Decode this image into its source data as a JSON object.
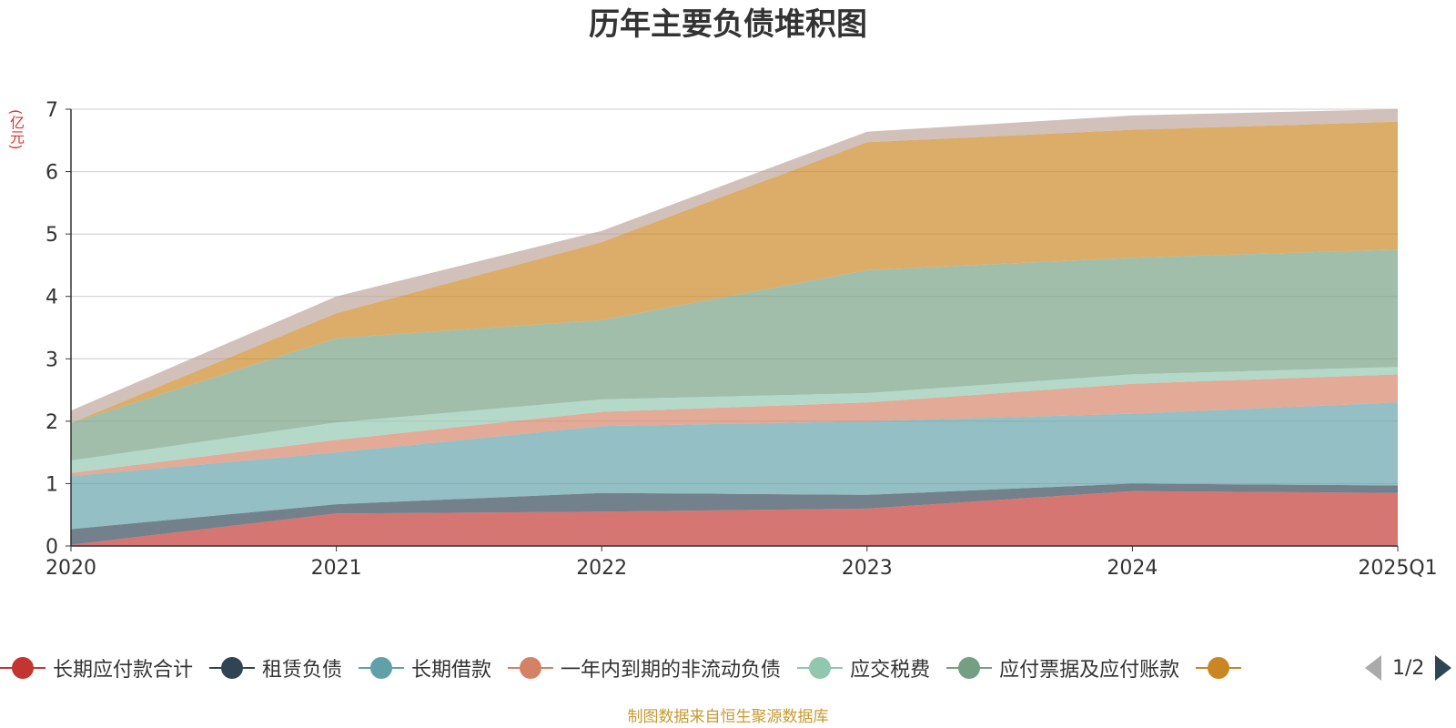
{
  "chart_data": {
    "type": "area",
    "stacked": true,
    "title": "历年主要负债堆积图",
    "unit_label": "(亿元)",
    "categories": [
      "2020",
      "2021",
      "2022",
      "2023",
      "2024",
      "2025Q1"
    ],
    "y_ticks": [
      "0",
      "1",
      "2",
      "3",
      "4",
      "5",
      "6",
      "7"
    ],
    "ylim": [
      0,
      7
    ],
    "grid": true,
    "legend_placement": "bottom",
    "series": [
      {
        "name": "长期应付款合计",
        "color": "#c23531",
        "values": [
          0.02,
          0.52,
          0.55,
          0.6,
          0.88,
          0.85
        ]
      },
      {
        "name": "租赁负债",
        "color": "#2f4554",
        "values": [
          0.25,
          0.15,
          0.3,
          0.22,
          0.12,
          0.12
        ]
      },
      {
        "name": "长期借款",
        "color": "#61a0a8",
        "values": [
          0.85,
          0.83,
          1.07,
          1.18,
          1.12,
          1.33
        ]
      },
      {
        "name": "一年内到期的非流动负债",
        "color": "#d48265",
        "values": [
          0.05,
          0.2,
          0.23,
          0.3,
          0.48,
          0.45
        ]
      },
      {
        "name": "应交税费",
        "color": "#91c7ae",
        "values": [
          0.2,
          0.28,
          0.2,
          0.15,
          0.15,
          0.12
        ]
      },
      {
        "name": "应付票据及应付账款",
        "color": "#749f83",
        "values": [
          0.6,
          1.35,
          1.27,
          1.97,
          1.87,
          1.88
        ]
      },
      {
        "name": "",
        "color": "#ca8622",
        "values": [
          0.0,
          0.4,
          1.25,
          2.05,
          2.05,
          2.05
        ]
      },
      {
        "name": "",
        "color": "#bda29a",
        "values": [
          0.2,
          0.27,
          0.18,
          0.17,
          0.23,
          0.2
        ]
      }
    ],
    "legend_visible_count": 7,
    "legend_page": "1/2"
  },
  "footer": {
    "source": "制图数据来自恒生聚源数据库"
  }
}
